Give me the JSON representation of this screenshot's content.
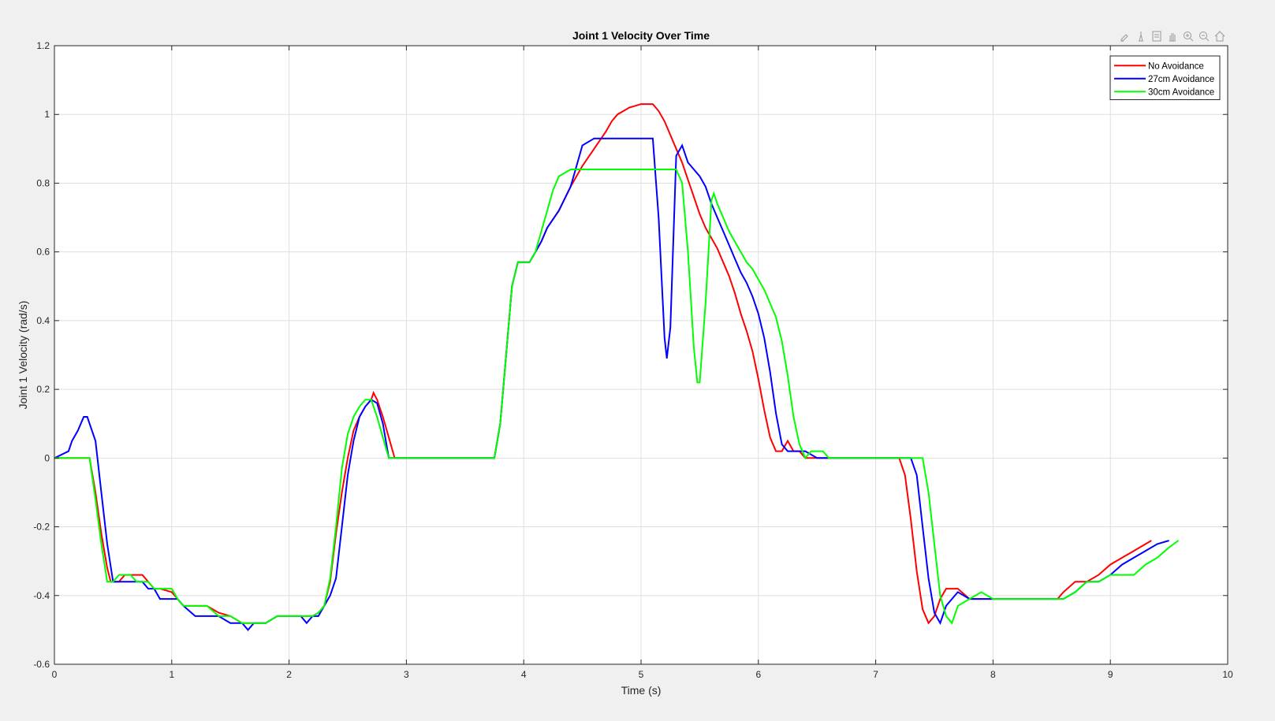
{
  "figure": {
    "background": "#f0f0f0",
    "toolbar": [
      {
        "name": "brush-icon"
      },
      {
        "name": "datatip-icon"
      },
      {
        "name": "export-icon"
      },
      {
        "name": "pan-icon"
      },
      {
        "name": "zoom-in-icon"
      },
      {
        "name": "zoom-out-icon"
      },
      {
        "name": "home-icon"
      }
    ]
  },
  "chart_data": {
    "type": "line",
    "title": "Joint 1 Velocity Over Time",
    "xlabel": "Time (s)",
    "ylabel": "Joint 1 Velocity (rad/s)",
    "xlim": [
      0,
      10
    ],
    "ylim": [
      -0.6,
      1.2
    ],
    "xticks": [
      0,
      1,
      2,
      3,
      4,
      5,
      6,
      7,
      8,
      9,
      10
    ],
    "yticks": [
      -0.6,
      -0.4,
      -0.2,
      0,
      0.2,
      0.4,
      0.6,
      0.8,
      1,
      1.2
    ],
    "xtick_labels": [
      "0",
      "1",
      "2",
      "3",
      "4",
      "5",
      "6",
      "7",
      "8",
      "9",
      "10"
    ],
    "ytick_labels": [
      "-0.6",
      "-0.4",
      "-0.2",
      "0",
      "0.2",
      "0.4",
      "0.6",
      "0.8",
      "1",
      "1.2"
    ],
    "grid": true,
    "legend_position": "top-right",
    "series": [
      {
        "name": "No Avoidance",
        "color": "#ff0000",
        "x": [
          0,
          0.3,
          0.35,
          0.4,
          0.45,
          0.48,
          0.55,
          0.6,
          0.65,
          0.7,
          0.75,
          0.8,
          0.85,
          0.9,
          1.0,
          1.05,
          1.1,
          1.2,
          1.3,
          1.4,
          1.5,
          1.6,
          1.7,
          1.8,
          1.9,
          2.0,
          2.1,
          2.2,
          2.25,
          2.3,
          2.35,
          2.4,
          2.45,
          2.5,
          2.55,
          2.6,
          2.65,
          2.7,
          2.72,
          2.75,
          2.8,
          2.85,
          2.9,
          3.0,
          3.5,
          3.75,
          3.8,
          3.85,
          3.9,
          3.95,
          4.0,
          4.05,
          4.1,
          4.15,
          4.2,
          4.3,
          4.4,
          4.5,
          4.6,
          4.7,
          4.75,
          4.8,
          4.9,
          5.0,
          5.05,
          5.1,
          5.15,
          5.2,
          5.25,
          5.3,
          5.35,
          5.4,
          5.45,
          5.5,
          5.55,
          5.6,
          5.65,
          5.7,
          5.75,
          5.8,
          5.85,
          5.9,
          5.95,
          6.0,
          6.05,
          6.1,
          6.15,
          6.2,
          6.25,
          6.3,
          6.35,
          6.4,
          6.45,
          6.5,
          6.6,
          6.8,
          7.0,
          7.2,
          7.25,
          7.3,
          7.35,
          7.4,
          7.45,
          7.5,
          7.55,
          7.6,
          7.7,
          7.8,
          7.9,
          8.0,
          8.2,
          8.4,
          8.55,
          8.6,
          8.7,
          8.8,
          8.9,
          9.0,
          9.1,
          9.2,
          9.3,
          9.35
        ],
        "y": [
          0,
          0,
          -0.1,
          -0.22,
          -0.32,
          -0.36,
          -0.36,
          -0.34,
          -0.34,
          -0.34,
          -0.34,
          -0.36,
          -0.38,
          -0.38,
          -0.39,
          -0.41,
          -0.43,
          -0.43,
          -0.43,
          -0.45,
          -0.46,
          -0.48,
          -0.48,
          -0.48,
          -0.46,
          -0.46,
          -0.46,
          -0.46,
          -0.45,
          -0.43,
          -0.36,
          -0.22,
          -0.1,
          0.0,
          0.08,
          0.12,
          0.15,
          0.17,
          0.19,
          0.17,
          0.12,
          0.06,
          0.0,
          0.0,
          0.0,
          0.0,
          0.1,
          0.3,
          0.5,
          0.57,
          0.57,
          0.57,
          0.6,
          0.63,
          0.67,
          0.72,
          0.79,
          0.85,
          0.9,
          0.95,
          0.98,
          1.0,
          1.02,
          1.03,
          1.03,
          1.03,
          1.01,
          0.98,
          0.94,
          0.9,
          0.86,
          0.81,
          0.76,
          0.71,
          0.67,
          0.64,
          0.61,
          0.57,
          0.53,
          0.48,
          0.42,
          0.37,
          0.31,
          0.23,
          0.14,
          0.06,
          0.02,
          0.02,
          0.05,
          0.02,
          0.02,
          0.0,
          0.0,
          0.0,
          0.0,
          0.0,
          0.0,
          0.0,
          -0.05,
          -0.18,
          -0.33,
          -0.44,
          -0.48,
          -0.46,
          -0.41,
          -0.38,
          -0.38,
          -0.41,
          -0.41,
          -0.41,
          -0.41,
          -0.41,
          -0.41,
          -0.39,
          -0.36,
          -0.36,
          -0.34,
          -0.31,
          -0.29,
          -0.27,
          -0.25,
          -0.24
        ]
      },
      {
        "name": "27cm Avoidance",
        "color": "#0000ff",
        "x": [
          0,
          0.12,
          0.15,
          0.2,
          0.25,
          0.28,
          0.3,
          0.35,
          0.4,
          0.45,
          0.5,
          0.55,
          0.6,
          0.65,
          0.7,
          0.75,
          0.8,
          0.85,
          0.9,
          1.0,
          1.05,
          1.1,
          1.2,
          1.3,
          1.4,
          1.5,
          1.6,
          1.65,
          1.7,
          1.8,
          1.9,
          2.0,
          2.1,
          2.15,
          2.2,
          2.25,
          2.3,
          2.35,
          2.4,
          2.45,
          2.5,
          2.55,
          2.6,
          2.65,
          2.7,
          2.75,
          2.8,
          2.85,
          3.0,
          3.5,
          3.75,
          3.8,
          3.85,
          3.9,
          3.95,
          4.0,
          4.05,
          4.1,
          4.15,
          4.2,
          4.3,
          4.4,
          4.45,
          4.5,
          4.6,
          4.8,
          5.0,
          5.1,
          5.15,
          5.2,
          5.22,
          5.25,
          5.3,
          5.35,
          5.4,
          5.45,
          5.5,
          5.55,
          5.6,
          5.65,
          5.7,
          5.75,
          5.8,
          5.85,
          5.9,
          5.95,
          6.0,
          6.05,
          6.1,
          6.15,
          6.2,
          6.25,
          6.3,
          6.4,
          6.5,
          6.6,
          6.8,
          7.0,
          7.3,
          7.35,
          7.4,
          7.45,
          7.5,
          7.55,
          7.6,
          7.65,
          7.7,
          7.8,
          7.9,
          8.0,
          8.2,
          8.4,
          8.6,
          8.7,
          8.8,
          8.9,
          9.0,
          9.1,
          9.2,
          9.3,
          9.4,
          9.5
        ],
        "y": [
          0,
          0.02,
          0.05,
          0.08,
          0.12,
          0.12,
          0.1,
          0.05,
          -0.1,
          -0.25,
          -0.36,
          -0.36,
          -0.36,
          -0.36,
          -0.36,
          -0.36,
          -0.38,
          -0.38,
          -0.41,
          -0.41,
          -0.41,
          -0.43,
          -0.46,
          -0.46,
          -0.46,
          -0.48,
          -0.48,
          -0.5,
          -0.48,
          -0.48,
          -0.46,
          -0.46,
          -0.46,
          -0.48,
          -0.46,
          -0.46,
          -0.43,
          -0.4,
          -0.35,
          -0.2,
          -0.05,
          0.05,
          0.12,
          0.15,
          0.17,
          0.16,
          0.1,
          0.0,
          0.0,
          0.0,
          0.0,
          0.1,
          0.3,
          0.5,
          0.57,
          0.57,
          0.57,
          0.6,
          0.63,
          0.67,
          0.72,
          0.79,
          0.85,
          0.91,
          0.93,
          0.93,
          0.93,
          0.93,
          0.7,
          0.35,
          0.29,
          0.38,
          0.88,
          0.91,
          0.86,
          0.84,
          0.82,
          0.79,
          0.74,
          0.7,
          0.66,
          0.62,
          0.58,
          0.54,
          0.51,
          0.47,
          0.42,
          0.35,
          0.25,
          0.13,
          0.04,
          0.02,
          0.02,
          0.02,
          0.0,
          0.0,
          0.0,
          0.0,
          0.0,
          -0.05,
          -0.2,
          -0.35,
          -0.45,
          -0.48,
          -0.43,
          -0.41,
          -0.39,
          -0.41,
          -0.41,
          -0.41,
          -0.41,
          -0.41,
          -0.41,
          -0.39,
          -0.36,
          -0.36,
          -0.34,
          -0.31,
          -0.29,
          -0.27,
          -0.25,
          -0.24
        ]
      },
      {
        "name": "30cm Avoidance",
        "color": "#00ff00",
        "x": [
          0,
          0.3,
          0.35,
          0.4,
          0.45,
          0.5,
          0.55,
          0.6,
          0.65,
          0.7,
          0.75,
          0.8,
          0.85,
          0.9,
          1.0,
          1.05,
          1.1,
          1.2,
          1.3,
          1.4,
          1.5,
          1.6,
          1.7,
          1.8,
          1.9,
          2.0,
          2.1,
          2.2,
          2.25,
          2.3,
          2.35,
          2.4,
          2.45,
          2.5,
          2.55,
          2.6,
          2.65,
          2.7,
          2.75,
          2.8,
          2.85,
          3.0,
          3.5,
          3.75,
          3.8,
          3.85,
          3.9,
          3.95,
          4.0,
          4.05,
          4.1,
          4.15,
          4.2,
          4.25,
          4.3,
          4.4,
          4.5,
          4.6,
          4.8,
          5.0,
          5.2,
          5.3,
          5.35,
          5.4,
          5.45,
          5.48,
          5.5,
          5.55,
          5.6,
          5.62,
          5.65,
          5.7,
          5.75,
          5.8,
          5.85,
          5.9,
          5.95,
          6.0,
          6.05,
          6.1,
          6.15,
          6.2,
          6.25,
          6.3,
          6.35,
          6.4,
          6.45,
          6.5,
          6.55,
          6.6,
          6.8,
          7.0,
          7.2,
          7.4,
          7.45,
          7.5,
          7.55,
          7.6,
          7.65,
          7.7,
          7.8,
          7.9,
          8.0,
          8.2,
          8.4,
          8.6,
          8.7,
          8.8,
          8.9,
          9.0,
          9.1,
          9.2,
          9.3,
          9.4,
          9.5,
          9.58
        ],
        "y": [
          0,
          0,
          -0.12,
          -0.25,
          -0.36,
          -0.36,
          -0.34,
          -0.34,
          -0.34,
          -0.36,
          -0.36,
          -0.36,
          -0.38,
          -0.38,
          -0.38,
          -0.41,
          -0.43,
          -0.43,
          -0.43,
          -0.46,
          -0.46,
          -0.48,
          -0.48,
          -0.48,
          -0.46,
          -0.46,
          -0.46,
          -0.46,
          -0.45,
          -0.43,
          -0.35,
          -0.2,
          -0.03,
          0.07,
          0.12,
          0.15,
          0.17,
          0.17,
          0.12,
          0.06,
          0.0,
          0.0,
          0.0,
          0.0,
          0.1,
          0.3,
          0.5,
          0.57,
          0.57,
          0.57,
          0.6,
          0.66,
          0.72,
          0.78,
          0.82,
          0.84,
          0.84,
          0.84,
          0.84,
          0.84,
          0.84,
          0.84,
          0.8,
          0.6,
          0.32,
          0.22,
          0.22,
          0.45,
          0.75,
          0.77,
          0.74,
          0.7,
          0.66,
          0.63,
          0.6,
          0.57,
          0.55,
          0.52,
          0.49,
          0.45,
          0.41,
          0.34,
          0.24,
          0.12,
          0.04,
          0.0,
          0.02,
          0.02,
          0.02,
          0.0,
          0.0,
          0.0,
          0.0,
          0.0,
          -0.1,
          -0.25,
          -0.4,
          -0.46,
          -0.48,
          -0.43,
          -0.41,
          -0.39,
          -0.41,
          -0.41,
          -0.41,
          -0.41,
          -0.39,
          -0.36,
          -0.36,
          -0.34,
          -0.34,
          -0.34,
          -0.31,
          -0.29,
          -0.26,
          -0.24
        ]
      }
    ]
  }
}
